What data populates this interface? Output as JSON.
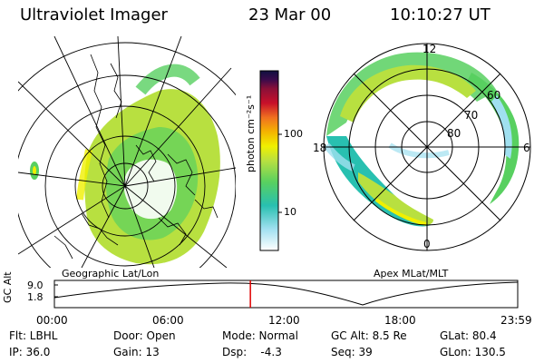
{
  "header": {
    "title": "Ultraviolet Imager",
    "date": "23 Mar 00",
    "time": "10:10:27 UT"
  },
  "left_panel": {
    "caption": "Geographic Lat/Lon"
  },
  "right_panel": {
    "caption": "Apex MLat/MLT",
    "mlt_labels": {
      "top": "12",
      "left": "18",
      "right": "6",
      "bottom": "0"
    },
    "lat_labels": [
      "60",
      "70",
      "80"
    ]
  },
  "colorbar": {
    "unit_label": "photon cm⁻²s⁻¹",
    "tick_labels": [
      "100",
      "10"
    ],
    "colors": [
      "#101040",
      "#3b0b4b",
      "#8a1038",
      "#c8102a",
      "#f07020",
      "#f4b400",
      "#f0f000",
      "#b8e040",
      "#58d060",
      "#28c0b0",
      "#a0e0f0",
      "#ffffff"
    ]
  },
  "timeline": {
    "ylabel": "GC Alt",
    "y_ticks": [
      "9.0",
      "1.8"
    ],
    "x_ticks": [
      "00:00",
      "06:00",
      "12:00",
      "18:00",
      "23:59"
    ],
    "current_time_fraction": 0.423,
    "marker_color": "#e00000"
  },
  "info": {
    "row1": [
      "Flt: LBHL",
      "Door: Open",
      "Mode: Normal",
      "GC Alt: 8.5 Re",
      "GLat: 80.4"
    ],
    "row2": [
      "IP: 36.0",
      "Gain: 13",
      "Dsp:    -4.3",
      "Seq: 39",
      "GLon: 130.5"
    ]
  }
}
